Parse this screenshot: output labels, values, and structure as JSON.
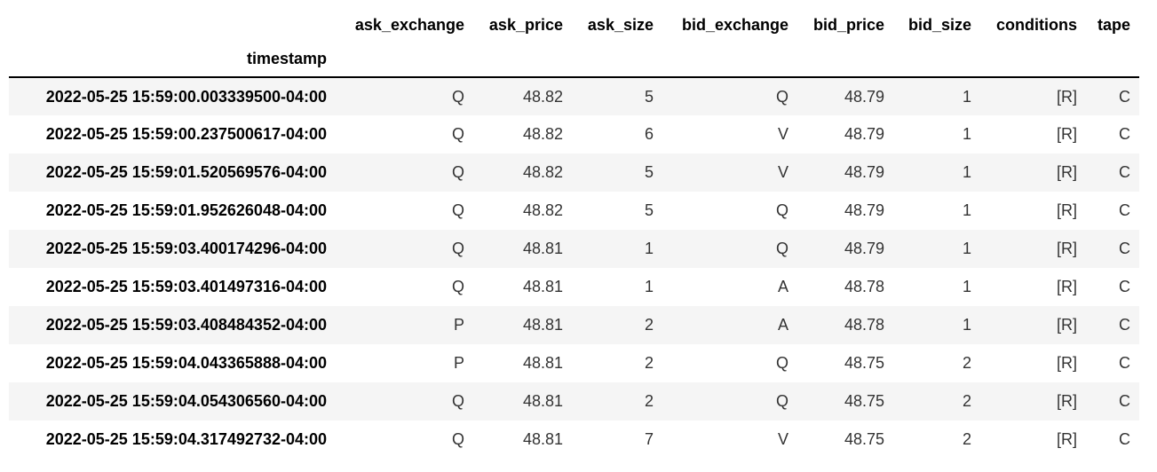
{
  "table": {
    "index_name": "timestamp",
    "columns": [
      "ask_exchange",
      "ask_price",
      "ask_size",
      "bid_exchange",
      "bid_price",
      "bid_size",
      "conditions",
      "tape"
    ],
    "rows": [
      {
        "timestamp": "2022-05-25 15:59:00.003339500-04:00",
        "values": [
          "Q",
          "48.82",
          "5",
          "Q",
          "48.79",
          "1",
          "[R]",
          "C"
        ]
      },
      {
        "timestamp": "2022-05-25 15:59:00.237500617-04:00",
        "values": [
          "Q",
          "48.82",
          "6",
          "V",
          "48.79",
          "1",
          "[R]",
          "C"
        ]
      },
      {
        "timestamp": "2022-05-25 15:59:01.520569576-04:00",
        "values": [
          "Q",
          "48.82",
          "5",
          "V",
          "48.79",
          "1",
          "[R]",
          "C"
        ]
      },
      {
        "timestamp": "2022-05-25 15:59:01.952626048-04:00",
        "values": [
          "Q",
          "48.82",
          "5",
          "Q",
          "48.79",
          "1",
          "[R]",
          "C"
        ]
      },
      {
        "timestamp": "2022-05-25 15:59:03.400174296-04:00",
        "values": [
          "Q",
          "48.81",
          "1",
          "Q",
          "48.79",
          "1",
          "[R]",
          "C"
        ]
      },
      {
        "timestamp": "2022-05-25 15:59:03.401497316-04:00",
        "values": [
          "Q",
          "48.81",
          "1",
          "A",
          "48.78",
          "1",
          "[R]",
          "C"
        ]
      },
      {
        "timestamp": "2022-05-25 15:59:03.408484352-04:00",
        "values": [
          "P",
          "48.81",
          "2",
          "A",
          "48.78",
          "1",
          "[R]",
          "C"
        ]
      },
      {
        "timestamp": "2022-05-25 15:59:04.043365888-04:00",
        "values": [
          "P",
          "48.81",
          "2",
          "Q",
          "48.75",
          "2",
          "[R]",
          "C"
        ]
      },
      {
        "timestamp": "2022-05-25 15:59:04.054306560-04:00",
        "values": [
          "Q",
          "48.81",
          "2",
          "Q",
          "48.75",
          "2",
          "[R]",
          "C"
        ]
      },
      {
        "timestamp": "2022-05-25 15:59:04.317492732-04:00",
        "values": [
          "Q",
          "48.81",
          "7",
          "V",
          "48.75",
          "2",
          "[R]",
          "C"
        ]
      }
    ]
  }
}
